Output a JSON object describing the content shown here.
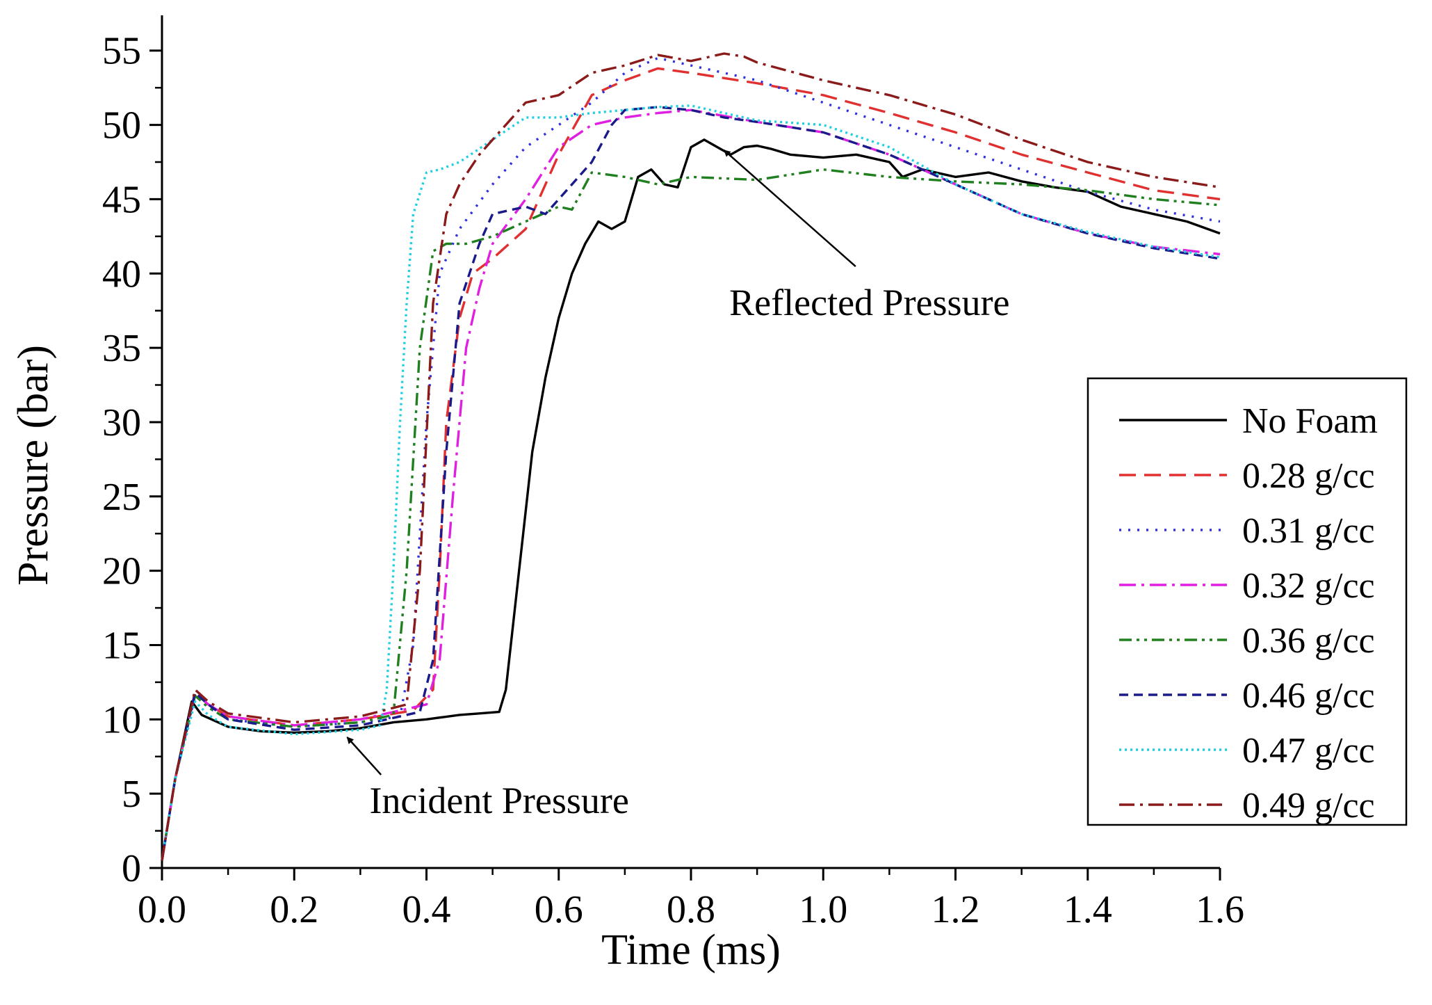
{
  "chart_data": {
    "type": "line",
    "title": "",
    "xlabel": "Time (ms)",
    "ylabel": "Pressure (bar)",
    "xlim": [
      0.0,
      1.6
    ],
    "ylim": [
      0,
      57
    ],
    "xticks": [
      0.0,
      0.2,
      0.4,
      0.6,
      0.8,
      1.0,
      1.2,
      1.4,
      1.6
    ],
    "xtick_labels": [
      "0.0",
      "0.2",
      "0.4",
      "0.6",
      "0.8",
      "1.0",
      "1.2",
      "1.4",
      "1.6"
    ],
    "yticks": [
      0,
      5,
      10,
      15,
      20,
      25,
      30,
      35,
      40,
      45,
      50,
      55
    ],
    "ytick_labels": [
      "0",
      "5",
      "10",
      "15",
      "20",
      "25",
      "30",
      "35",
      "40",
      "45",
      "50",
      "55"
    ],
    "grid": false,
    "legend_position": "right",
    "series": [
      {
        "name": "No Foam",
        "color": "#000000",
        "dash": "solid",
        "x": [
          0,
          0.02,
          0.045,
          0.06,
          0.1,
          0.15,
          0.2,
          0.25,
          0.3,
          0.35,
          0.4,
          0.45,
          0.48,
          0.51,
          0.52,
          0.54,
          0.56,
          0.58,
          0.6,
          0.62,
          0.64,
          0.66,
          0.68,
          0.7,
          0.72,
          0.74,
          0.76,
          0.78,
          0.8,
          0.82,
          0.84,
          0.86,
          0.88,
          0.9,
          0.92,
          0.95,
          1.0,
          1.05,
          1.1,
          1.12,
          1.15,
          1.2,
          1.25,
          1.3,
          1.35,
          1.4,
          1.45,
          1.5,
          1.55,
          1.6
        ],
        "y": [
          0.5,
          6,
          11.2,
          10.3,
          9.5,
          9.2,
          9.1,
          9.2,
          9.4,
          9.8,
          10.0,
          10.3,
          10.4,
          10.5,
          12,
          20,
          28,
          33,
          37,
          40,
          42,
          43.5,
          43.0,
          43.5,
          46.5,
          47.0,
          46.0,
          45.8,
          48.5,
          49.0,
          48.5,
          48.0,
          48.5,
          48.6,
          48.4,
          48.0,
          47.8,
          48.0,
          47.5,
          46.5,
          47.0,
          46.5,
          46.8,
          46.2,
          45.8,
          45.5,
          44.5,
          44.0,
          43.5,
          42.7
        ]
      },
      {
        "name": "0.28 g/cc",
        "color": "#e03030",
        "dash": "dash",
        "x": [
          0,
          0.02,
          0.05,
          0.07,
          0.1,
          0.2,
          0.3,
          0.38,
          0.41,
          0.42,
          0.43,
          0.45,
          0.47,
          0.5,
          0.55,
          0.6,
          0.65,
          0.7,
          0.75,
          0.8,
          0.9,
          1.0,
          1.1,
          1.2,
          1.3,
          1.4,
          1.5,
          1.6
        ],
        "y": [
          0.5,
          6,
          11.8,
          11.0,
          10.2,
          9.6,
          10.0,
          10.6,
          12,
          20,
          30,
          37,
          40,
          41,
          43,
          48,
          52,
          53,
          53.8,
          53.5,
          52.8,
          52,
          50.8,
          49.5,
          48.0,
          46.8,
          45.6,
          45.0
        ]
      },
      {
        "name": "0.31 g/cc",
        "color": "#3030e0",
        "dash": "dot",
        "x": [
          0,
          0.02,
          0.05,
          0.07,
          0.1,
          0.2,
          0.3,
          0.36,
          0.38,
          0.4,
          0.42,
          0.45,
          0.5,
          0.55,
          0.6,
          0.65,
          0.7,
          0.75,
          0.8,
          0.9,
          1.0,
          1.1,
          1.2,
          1.3,
          1.4,
          1.5,
          1.6
        ],
        "y": [
          0.5,
          6,
          11.6,
          10.8,
          10.0,
          9.5,
          9.8,
          10.2,
          15,
          30,
          40,
          43,
          46,
          48.5,
          50,
          51.5,
          53.5,
          54.5,
          54.0,
          53,
          51.5,
          50,
          48.5,
          47,
          45.5,
          44.3,
          43.5
        ]
      },
      {
        "name": "0.32 g/cc",
        "color": "#e020e0",
        "dash": "dashdot",
        "x": [
          0,
          0.02,
          0.05,
          0.07,
          0.1,
          0.2,
          0.3,
          0.38,
          0.4,
          0.42,
          0.44,
          0.46,
          0.48,
          0.5,
          0.55,
          0.6,
          0.65,
          0.7,
          0.75,
          0.8,
          0.9,
          1.0,
          1.1,
          1.2,
          1.3,
          1.4,
          1.5,
          1.6
        ],
        "y": [
          0.5,
          6,
          11.8,
          11.0,
          10.2,
          9.6,
          10.0,
          10.8,
          11.0,
          14,
          25,
          35,
          39,
          42,
          45,
          48.5,
          50,
          50.5,
          50.8,
          51.0,
          50.2,
          49.5,
          48,
          46,
          44,
          42.7,
          41.8,
          41.3
        ]
      },
      {
        "name": "0.36 g/cc",
        "color": "#208020",
        "dash": "dashdotdot",
        "x": [
          0,
          0.02,
          0.05,
          0.07,
          0.1,
          0.2,
          0.3,
          0.35,
          0.37,
          0.39,
          0.41,
          0.43,
          0.46,
          0.5,
          0.55,
          0.6,
          0.62,
          0.65,
          0.7,
          0.75,
          0.8,
          0.9,
          1.0,
          1.1,
          1.2,
          1.3,
          1.4,
          1.5,
          1.6
        ],
        "y": [
          0.5,
          6,
          11.6,
          10.8,
          10.0,
          9.5,
          9.8,
          10.3,
          20,
          35,
          41.5,
          42,
          42,
          42.5,
          43.5,
          44.5,
          44.3,
          46.8,
          46.5,
          46.0,
          46.5,
          46.3,
          47.0,
          46.5,
          46.2,
          46.0,
          45.6,
          45.0,
          44.6
        ]
      },
      {
        "name": "0.46 g/cc",
        "color": "#1a1a8a",
        "dash": "shortdash",
        "x": [
          0,
          0.02,
          0.05,
          0.07,
          0.1,
          0.2,
          0.3,
          0.39,
          0.41,
          0.43,
          0.45,
          0.48,
          0.5,
          0.55,
          0.58,
          0.62,
          0.65,
          0.68,
          0.7,
          0.75,
          0.8,
          0.85,
          0.9,
          1.0,
          1.1,
          1.2,
          1.3,
          1.4,
          1.5,
          1.6
        ],
        "y": [
          0.5,
          6,
          11.8,
          11.0,
          10.0,
          9.3,
          9.6,
          10.5,
          14,
          28,
          38,
          42,
          44,
          44.5,
          44.0,
          46,
          47.5,
          50,
          51,
          51.2,
          51.0,
          50.5,
          50.2,
          49.5,
          48,
          46,
          44,
          42.7,
          41.7,
          41.0
        ]
      },
      {
        "name": "0.47 g/cc",
        "color": "#20d0e0",
        "dash": "densedot",
        "x": [
          0,
          0.02,
          0.05,
          0.07,
          0.1,
          0.2,
          0.3,
          0.33,
          0.34,
          0.35,
          0.36,
          0.37,
          0.38,
          0.4,
          0.42,
          0.45,
          0.5,
          0.55,
          0.6,
          0.65,
          0.7,
          0.75,
          0.8,
          0.85,
          0.9,
          1.0,
          1.1,
          1.2,
          1.3,
          1.4,
          1.5,
          1.6
        ],
        "y": [
          0.5,
          6,
          11.2,
          10.3,
          9.5,
          9.0,
          9.3,
          9.6,
          12,
          20,
          30,
          38,
          44,
          46.8,
          47,
          47.5,
          49,
          50.5,
          50.5,
          50.8,
          51,
          51.2,
          51.3,
          50.8,
          50.3,
          50,
          48.5,
          46,
          44,
          42.8,
          41.8,
          41.1
        ]
      },
      {
        "name": "0.49 g/cc",
        "color": "#8b1a1a",
        "dash": "dashdotlong",
        "x": [
          0,
          0.02,
          0.05,
          0.07,
          0.1,
          0.2,
          0.3,
          0.37,
          0.39,
          0.41,
          0.43,
          0.45,
          0.48,
          0.5,
          0.55,
          0.6,
          0.65,
          0.7,
          0.75,
          0.8,
          0.85,
          0.88,
          0.9,
          1.0,
          1.1,
          1.2,
          1.3,
          1.4,
          1.5,
          1.6
        ],
        "y": [
          0.5,
          6,
          12.0,
          11.2,
          10.4,
          9.8,
          10.2,
          11.0,
          20,
          38,
          44,
          46,
          48,
          49,
          51.5,
          52,
          53.5,
          54,
          54.7,
          54.3,
          54.8,
          54.6,
          54.2,
          53,
          52,
          50.7,
          49,
          47.5,
          46.5,
          45.8
        ]
      }
    ],
    "annotations": [
      {
        "text": "Reflected Pressure",
        "target_x": 0.85,
        "target_y": 48.3,
        "text_x": 1.07,
        "text_y": 37.2
      },
      {
        "text": "Incident Pressure",
        "target_x": 0.28,
        "target_y": 8.8,
        "text_x": 0.51,
        "text_y": 3.7
      }
    ]
  }
}
